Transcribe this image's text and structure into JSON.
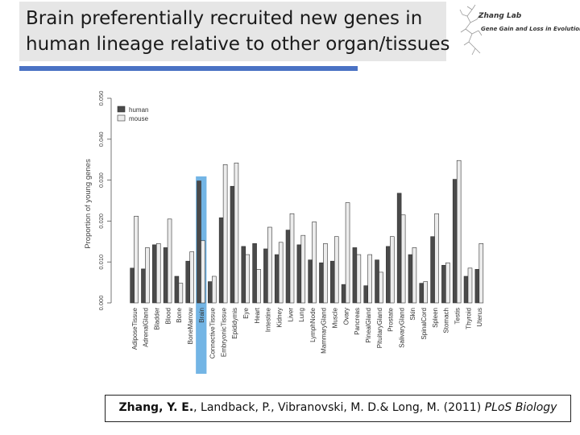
{
  "slide": {
    "title_line1": "Brain preferentially recruited new genes in",
    "title_line2": "human lineage relative to other organ/tissues",
    "logo_lab": "Zhang Lab",
    "logo_subtitle": "Gene Gain and Loss in Evolution",
    "citation_authors": "Zhang, Y. E.",
    "citation_rest": ", Landback, P., Vibranovski, M. D.& Long, M. (2011) ",
    "citation_journal": "PLoS Biology"
  },
  "colors": {
    "title_bg": "#e6e6e6",
    "accent_rule": "#4a72c4",
    "highlight": "#5ba8e0",
    "human": "#4a4a4a",
    "mouse": "#ececec"
  },
  "chart_data": {
    "type": "bar",
    "ylabel": "Proportion of young genes",
    "xlabel": "",
    "ylim": [
      0,
      0.05
    ],
    "yticks": [
      "0.000",
      "0.010",
      "0.020",
      "0.030",
      "0.040",
      "0.050"
    ],
    "legend_position": "top-left",
    "highlight_category": "Brain",
    "categories": [
      "AdiposeTissue",
      "AdrenalGland",
      "Bladder",
      "Blood",
      "Bone",
      "BoneMarrow",
      "Brain",
      "ConnectiveTissue",
      "EmbryonicTissue",
      "Epididymis",
      "Eye",
      "Heart",
      "Intestine",
      "Kidney",
      "Liver",
      "Lung",
      "LymphNode",
      "MammaryGland",
      "Muscle",
      "Ovary",
      "Pancreas",
      "PinealGland",
      "PituitaryGland",
      "Prostate",
      "SalivaryGland",
      "Skin",
      "SpinalCord",
      "Spleen",
      "Stomach",
      "Testis",
      "Thyroid",
      "Uterus"
    ],
    "series": [
      {
        "name": "human",
        "values": [
          0.0085,
          0.0083,
          0.0142,
          0.0135,
          0.0065,
          0.0102,
          0.0298,
          0.0052,
          0.0208,
          0.0285,
          0.0138,
          0.0145,
          0.0132,
          0.0118,
          0.0178,
          0.0142,
          0.0105,
          0.0098,
          0.0102,
          0.0045,
          0.0135,
          0.0042,
          0.0105,
          0.0138,
          0.0268,
          0.0118,
          0.0048,
          0.0162,
          0.0092,
          0.0302,
          0.0065,
          0.0082
        ]
      },
      {
        "name": "mouse",
        "values": [
          0.0212,
          0.0135,
          0.0145,
          0.0205,
          0.0048,
          0.0125,
          0.0152,
          0.0065,
          0.0338,
          0.0342,
          0.0118,
          0.0082,
          0.0185,
          0.0148,
          0.0218,
          0.0165,
          0.0198,
          0.0145,
          0.0162,
          0.0245,
          0.0118,
          0.0118,
          0.0075,
          0.0162,
          0.0215,
          0.0135,
          0.0052,
          0.0218,
          0.0098,
          0.0348,
          0.0085,
          0.0145
        ]
      }
    ]
  }
}
